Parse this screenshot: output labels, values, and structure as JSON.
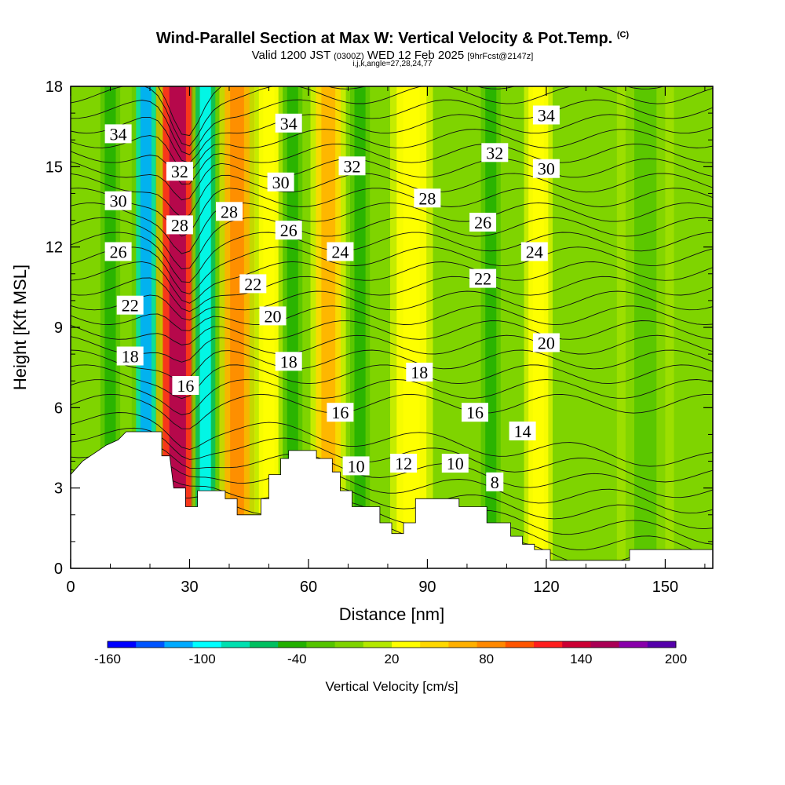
{
  "header": {
    "title": "Wind-Parallel Section at Max W: Vertical Velocity & Pot.Temp.",
    "copyright": "(C)",
    "valid_main": "Valid 1200 JST",
    "valid_utc": "(0300Z)",
    "valid_date": "WED 12 Feb 2025",
    "forecast": "[9hrFcst@2147z]",
    "subline": "i,j,k,angle=27,28,24,77"
  },
  "chart_data": {
    "type": "heatmap",
    "xlabel": "Distance [nm]",
    "ylabel": "Height [Kft MSL]",
    "xlim": [
      0,
      162
    ],
    "ylim": [
      0,
      18
    ],
    "x_ticks": [
      "0",
      "30",
      "60",
      "90",
      "120",
      "150"
    ],
    "y_ticks": [
      "0",
      "3",
      "6",
      "9",
      "12",
      "15",
      "18"
    ],
    "background_color": "#7fd400",
    "terrain_color": "#ffffff",
    "terrain": [
      [
        0,
        3.5
      ],
      [
        3,
        4.0
      ],
      [
        6,
        4.3
      ],
      [
        9,
        4.6
      ],
      [
        12,
        4.8
      ],
      [
        14,
        5.1
      ],
      [
        23,
        5.1
      ],
      [
        23,
        4.2
      ],
      [
        25,
        4.2
      ],
      [
        26,
        3.0
      ],
      [
        29,
        3.0
      ],
      [
        29,
        2.3
      ],
      [
        32,
        2.3
      ],
      [
        32,
        2.9
      ],
      [
        39,
        2.9
      ],
      [
        39,
        2.6
      ],
      [
        42,
        2.6
      ],
      [
        42,
        2.0
      ],
      [
        48,
        2.0
      ],
      [
        48,
        2.6
      ],
      [
        50,
        2.6
      ],
      [
        50,
        3.5
      ],
      [
        53,
        3.5
      ],
      [
        53,
        4.1
      ],
      [
        55,
        4.1
      ],
      [
        55,
        4.4
      ],
      [
        62,
        4.4
      ],
      [
        62,
        4.1
      ],
      [
        66,
        4.1
      ],
      [
        66,
        3.6
      ],
      [
        68,
        3.6
      ],
      [
        68,
        2.9
      ],
      [
        71,
        2.9
      ],
      [
        71,
        2.3
      ],
      [
        78,
        2.3
      ],
      [
        78,
        1.7
      ],
      [
        81,
        1.7
      ],
      [
        81,
        1.3
      ],
      [
        84,
        1.3
      ],
      [
        84,
        1.7
      ],
      [
        87,
        1.7
      ],
      [
        87,
        2.6
      ],
      [
        98,
        2.6
      ],
      [
        98,
        2.3
      ],
      [
        105,
        2.3
      ],
      [
        105,
        1.7
      ],
      [
        111,
        1.7
      ],
      [
        111,
        1.2
      ],
      [
        114,
        1.2
      ],
      [
        114,
        0.9
      ],
      [
        117,
        0.9
      ],
      [
        117,
        0.7
      ],
      [
        121,
        0.7
      ],
      [
        121,
        0.3
      ],
      [
        141,
        0.3
      ],
      [
        141,
        0.7
      ],
      [
        162,
        0.7
      ]
    ],
    "w_bands": [
      {
        "x": 10,
        "w": 4,
        "value": -40
      },
      {
        "x": 19,
        "w": 4,
        "value": -120
      },
      {
        "x": 27,
        "w": 6,
        "value": 160
      },
      {
        "x": 34,
        "w": 4,
        "value": -100
      },
      {
        "x": 42,
        "w": 5,
        "value": 80
      },
      {
        "x": 50,
        "w": 4,
        "value": 30
      },
      {
        "x": 56,
        "w": 4,
        "value": -40
      },
      {
        "x": 65,
        "w": 5,
        "value": 60
      },
      {
        "x": 73,
        "w": 4,
        "value": -40
      },
      {
        "x": 86,
        "w": 6,
        "value": 30
      },
      {
        "x": 106,
        "w": 4,
        "value": -40
      },
      {
        "x": 118,
        "w": 4,
        "value": 30
      },
      {
        "x": 145,
        "w": 8,
        "value": -20
      }
    ],
    "theta_contours": {
      "levels": [
        "34",
        "32",
        "30",
        "28",
        "26",
        "24",
        "22",
        "20",
        "18",
        "16",
        "14",
        "12",
        "10",
        "8"
      ],
      "labels": [
        {
          "text": "34",
          "x": 12,
          "y": 16.2
        },
        {
          "text": "30",
          "x": 12,
          "y": 13.7
        },
        {
          "text": "26",
          "x": 12,
          "y": 11.8
        },
        {
          "text": "22",
          "x": 15,
          "y": 9.8
        },
        {
          "text": "18",
          "x": 15,
          "y": 7.9
        },
        {
          "text": "32",
          "x": 27.5,
          "y": 14.8
        },
        {
          "text": "28",
          "x": 27.5,
          "y": 12.8
        },
        {
          "text": "16",
          "x": 29,
          "y": 6.8
        },
        {
          "text": "28",
          "x": 40,
          "y": 13.3
        },
        {
          "text": "22",
          "x": 46,
          "y": 10.6
        },
        {
          "text": "34",
          "x": 55,
          "y": 16.6
        },
        {
          "text": "30",
          "x": 53,
          "y": 14.4
        },
        {
          "text": "26",
          "x": 55,
          "y": 12.6
        },
        {
          "text": "20",
          "x": 51,
          "y": 9.4
        },
        {
          "text": "18",
          "x": 55,
          "y": 7.7
        },
        {
          "text": "32",
          "x": 71,
          "y": 15.0
        },
        {
          "text": "24",
          "x": 68,
          "y": 11.8
        },
        {
          "text": "16",
          "x": 68,
          "y": 5.8
        },
        {
          "text": "10",
          "x": 72,
          "y": 3.8
        },
        {
          "text": "28",
          "x": 90,
          "y": 13.8
        },
        {
          "text": "18",
          "x": 88,
          "y": 7.3
        },
        {
          "text": "12",
          "x": 84,
          "y": 3.9
        },
        {
          "text": "10",
          "x": 97,
          "y": 3.9
        },
        {
          "text": "32",
          "x": 107,
          "y": 15.5
        },
        {
          "text": "26",
          "x": 104,
          "y": 12.9
        },
        {
          "text": "22",
          "x": 104,
          "y": 10.8
        },
        {
          "text": "16",
          "x": 102,
          "y": 5.8
        },
        {
          "text": "8",
          "x": 107,
          "y": 3.2
        },
        {
          "text": "34",
          "x": 120,
          "y": 16.9
        },
        {
          "text": "30",
          "x": 120,
          "y": 14.9
        },
        {
          "text": "24",
          "x": 117,
          "y": 11.8
        },
        {
          "text": "20",
          "x": 120,
          "y": 8.4
        },
        {
          "text": "14",
          "x": 114,
          "y": 5.1
        }
      ]
    }
  },
  "colorbar": {
    "label": "Vertical Velocity [cm/s]",
    "tick_labels": [
      "-160",
      "-100",
      "-40",
      "20",
      "80",
      "140",
      "200"
    ],
    "colors": [
      "#0000ff",
      "#0055ff",
      "#00aaff",
      "#00ffff",
      "#00e0b0",
      "#00c060",
      "#22b000",
      "#55c400",
      "#7fd400",
      "#b4e800",
      "#ffff00",
      "#ffd800",
      "#ffb000",
      "#ff8800",
      "#ff5500",
      "#ff1e1e",
      "#cc0033",
      "#aa0055",
      "#8800aa",
      "#5500aa"
    ]
  }
}
